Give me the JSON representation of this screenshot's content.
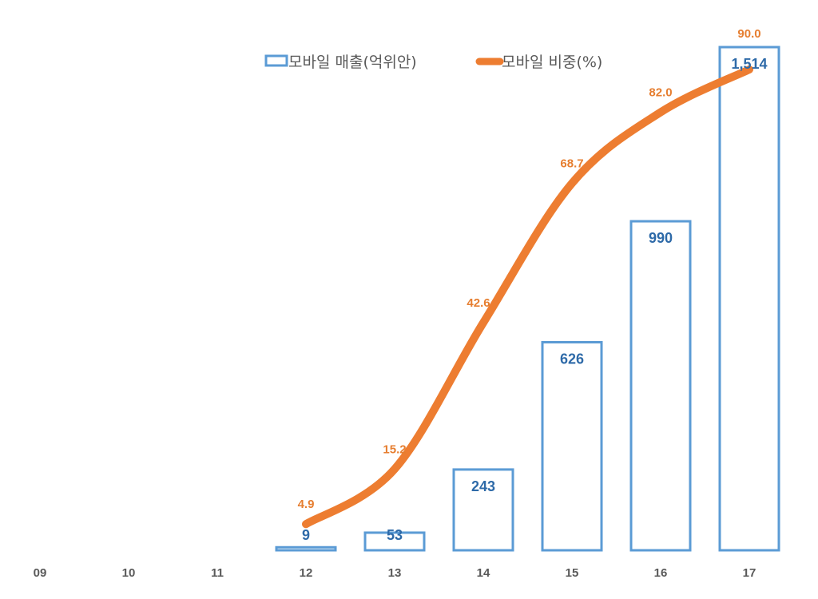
{
  "chart_data": {
    "type": "bar+line",
    "categories": [
      "09",
      "10",
      "11",
      "12",
      "13",
      "14",
      "15",
      "16",
      "17"
    ],
    "series": [
      {
        "name": "모바일 매출(억위안)",
        "type": "bar",
        "values": [
          null,
          null,
          null,
          9,
          53,
          243,
          626,
          990,
          1514
        ],
        "labels": [
          "",
          "",
          "",
          "9",
          "53",
          "243",
          "626",
          "990",
          "1,514"
        ]
      },
      {
        "name": "모바일 비중(%)",
        "type": "line",
        "values": [
          null,
          null,
          null,
          4.9,
          15.2,
          42.6,
          68.7,
          82.0,
          90.0
        ],
        "labels": [
          "",
          "",
          "",
          "4.9",
          "15.2",
          "42.6",
          "68.7",
          "82.0",
          "90.0"
        ]
      }
    ],
    "legend": "top-center",
    "grid": false,
    "colors": {
      "bar_stroke": "#5b9bd5",
      "bar_label": "#2e6aa8",
      "line": "#ed7d31",
      "line_label": "#e67e30",
      "tick": "#595959"
    }
  }
}
